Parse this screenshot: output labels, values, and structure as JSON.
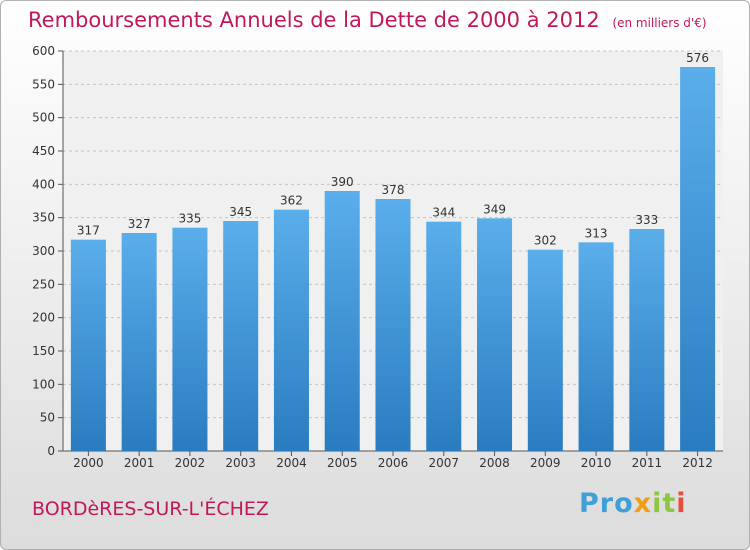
{
  "chart_data": {
    "type": "bar",
    "title": "Remboursements Annuels de la Dette de 2000 à 2012",
    "subtitle": "(en milliers d'€)",
    "categories": [
      "2000",
      "2001",
      "2002",
      "2003",
      "2004",
      "2005",
      "2006",
      "2007",
      "2008",
      "2009",
      "2010",
      "2011",
      "2012"
    ],
    "values": [
      317,
      327,
      335,
      345,
      362,
      390,
      378,
      344,
      349,
      302,
      313,
      333,
      576
    ],
    "ylim": [
      0,
      600
    ],
    "yticks": [
      0,
      50,
      100,
      150,
      200,
      250,
      300,
      350,
      400,
      450,
      500,
      550,
      600
    ],
    "grid": "horizontal-dashed",
    "legend": "none",
    "bar_color": "#3b92d6"
  },
  "footer": {
    "location": "BORDèRES-SUR-L'ÉCHEZ",
    "logo_parts": [
      "Pro",
      "x",
      "it",
      "i"
    ]
  }
}
